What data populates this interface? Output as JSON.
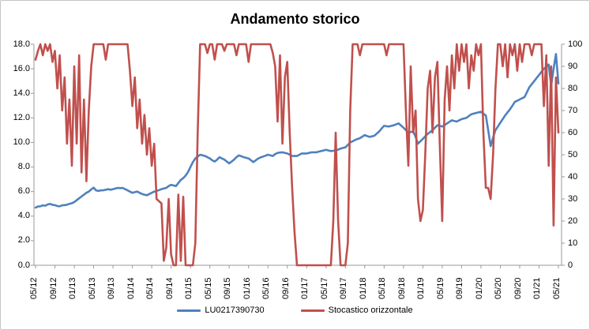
{
  "chart": {
    "title": "Andamento storico"
  },
  "chart_data": {
    "type": "line",
    "title": "Andamento storico",
    "xlabel": "",
    "ylabel_left": "",
    "ylabel_right": "",
    "grid": "off",
    "legend_position": "bottom",
    "x_unit": "month (MM/YY), data sampled twice per month",
    "x_tick_labels": [
      "05/12",
      "09/12",
      "01/13",
      "05/13",
      "09/13",
      "01/14",
      "05/14",
      "09/14",
      "01/15",
      "05/15",
      "09/15",
      "01/16",
      "05/16",
      "09/16",
      "01/17",
      "05/17",
      "09/17",
      "01/18",
      "05/18",
      "09/18",
      "01/19",
      "05/19",
      "09/19",
      "01/20",
      "05/20",
      "09/20",
      "01/21",
      "05/21"
    ],
    "left_axis": {
      "min": 0,
      "max": 18,
      "tick_labels_top_to_bottom": [
        "18.0",
        "16.0",
        "14.0",
        "12.0",
        "10.0",
        "8.0",
        "6.0",
        "4.0",
        "2.0",
        "0.0"
      ]
    },
    "right_axis": {
      "min": 0,
      "max": 100,
      "tick_labels_top_to_bottom": [
        "100",
        "90",
        "80",
        "70",
        "60",
        "50",
        "40",
        "30",
        "20",
        "10",
        "0"
      ]
    },
    "colors": {
      "axis": "#9a9a9a",
      "text": "#000000",
      "border": "#c6c6c6"
    },
    "series": [
      {
        "name": "LU0217390730",
        "axis": "left",
        "color": "#4F81BD",
        "values": [
          4.7,
          4.78,
          4.8,
          4.88,
          4.85,
          4.95,
          5.0,
          4.92,
          4.9,
          4.82,
          4.8,
          4.88,
          4.9,
          4.93,
          5.0,
          5.05,
          5.15,
          5.3,
          5.45,
          5.6,
          5.75,
          5.9,
          6.0,
          6.18,
          6.32,
          6.1,
          6.05,
          6.1,
          6.1,
          6.15,
          6.2,
          6.15,
          6.2,
          6.25,
          6.3,
          6.28,
          6.3,
          6.2,
          6.1,
          6.0,
          5.9,
          5.95,
          6.0,
          5.9,
          5.8,
          5.75,
          5.7,
          5.8,
          5.9,
          6.0,
          6.05,
          6.12,
          6.2,
          6.25,
          6.3,
          6.45,
          6.55,
          6.5,
          6.45,
          6.7,
          6.95,
          7.1,
          7.3,
          7.6,
          8.0,
          8.4,
          8.7,
          8.85,
          9.0,
          8.95,
          8.9,
          8.8,
          8.7,
          8.55,
          8.45,
          8.6,
          8.8,
          8.7,
          8.6,
          8.45,
          8.3,
          8.45,
          8.6,
          8.8,
          8.95,
          8.88,
          8.8,
          8.75,
          8.7,
          8.55,
          8.4,
          8.55,
          8.7,
          8.78,
          8.85,
          8.92,
          9.0,
          8.95,
          8.9,
          9.05,
          9.15,
          9.18,
          9.2,
          9.15,
          9.1,
          9.0,
          8.9,
          8.9,
          8.9,
          9.0,
          9.1,
          9.1,
          9.1,
          9.15,
          9.2,
          9.2,
          9.2,
          9.25,
          9.3,
          9.35,
          9.4,
          9.35,
          9.3,
          9.32,
          9.35,
          9.42,
          9.5,
          9.55,
          9.6,
          9.8,
          10.0,
          10.1,
          10.2,
          10.28,
          10.35,
          10.48,
          10.6,
          10.52,
          10.45,
          10.5,
          10.55,
          10.72,
          10.9,
          11.15,
          11.35,
          11.32,
          11.3,
          11.35,
          11.4,
          11.48,
          11.55,
          11.38,
          11.2,
          11.0,
          10.8,
          10.85,
          10.9,
          10.45,
          9.9,
          10.1,
          10.3,
          10.5,
          10.7,
          10.85,
          11.0,
          11.2,
          11.4,
          11.35,
          11.3,
          11.42,
          11.55,
          11.68,
          11.8,
          11.75,
          11.7,
          11.8,
          11.9,
          11.95,
          12.0,
          12.15,
          12.3,
          12.35,
          12.4,
          12.45,
          12.5,
          12.35,
          12.2,
          11.0,
          9.7,
          10.4,
          11.0,
          11.3,
          11.6,
          11.9,
          12.2,
          12.45,
          12.7,
          13.0,
          13.3,
          13.4,
          13.5,
          13.6,
          13.7,
          14.1,
          14.5,
          14.75,
          15.0,
          15.25,
          15.5,
          15.75,
          16.0,
          16.15,
          16.35,
          14.6,
          16.0,
          17.2,
          14.8
        ]
      },
      {
        "name": "Stocastico orizzontale",
        "axis": "right",
        "color": "#C0504D",
        "values": [
          93,
          97,
          100,
          95,
          100,
          97,
          100,
          92,
          97,
          80,
          95,
          70,
          85,
          55,
          75,
          45,
          90,
          55,
          95,
          42,
          75,
          38,
          70,
          90,
          100,
          100,
          100,
          100,
          100,
          93,
          100,
          100,
          100,
          100,
          100,
          100,
          100,
          100,
          100,
          88,
          72,
          85,
          62,
          75,
          55,
          68,
          50,
          62,
          45,
          55,
          30,
          29,
          28,
          2,
          8,
          30,
          5,
          0,
          0,
          32,
          2,
          31,
          0,
          0,
          0,
          0,
          10,
          60,
          100,
          100,
          100,
          96,
          100,
          100,
          93,
          100,
          100,
          100,
          97,
          100,
          100,
          100,
          100,
          95,
          100,
          100,
          100,
          100,
          92,
          100,
          100,
          100,
          100,
          100,
          100,
          100,
          100,
          100,
          96,
          90,
          65,
          95,
          55,
          85,
          92,
          60,
          35,
          15,
          0,
          0,
          0,
          0,
          0,
          0,
          0,
          0,
          0,
          0,
          0,
          0,
          0,
          0,
          0,
          20,
          60,
          20,
          0,
          0,
          0,
          10,
          70,
          100,
          100,
          100,
          95,
          100,
          100,
          100,
          100,
          100,
          100,
          100,
          100,
          100,
          100,
          95,
          100,
          100,
          100,
          100,
          100,
          100,
          100,
          70,
          45,
          90,
          60,
          70,
          30,
          20,
          25,
          50,
          80,
          88,
          60,
          85,
          92,
          55,
          20,
          75,
          90,
          70,
          95,
          80,
          100,
          88,
          100,
          92,
          100,
          80,
          95,
          88,
          100,
          95,
          100,
          60,
          35,
          35,
          30,
          50,
          80,
          100,
          100,
          90,
          100,
          85,
          100,
          95,
          100,
          88,
          100,
          92,
          100,
          100,
          100,
          95,
          100,
          100,
          100,
          100,
          72,
          95,
          45,
          90,
          18,
          85,
          60
        ]
      }
    ]
  },
  "legend": {
    "item1": "LU0217390730",
    "item2": "Stocastico orizzontale"
  }
}
